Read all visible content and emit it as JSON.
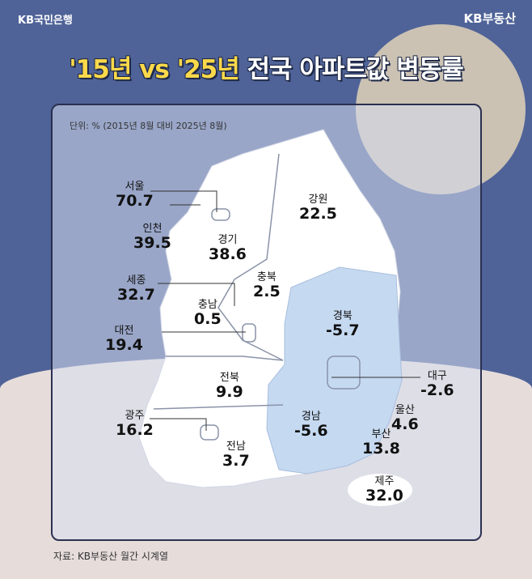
{
  "header": {
    "bank_logo": "KB국민은행",
    "brand": "KB부동산"
  },
  "title": {
    "highlight": "'15년 vs '25년",
    "main": "전국 아파트값 변동률"
  },
  "unit": "단위: % (2015년 8월 대비 2025년 8월)",
  "source": "자료: KB부동산 월간 시계열",
  "colors": {
    "background": "#4f6398",
    "decline_region": "#c5d9f1",
    "map": "#ffffff",
    "title_highlight": "#fcd94a"
  },
  "regions": [
    {
      "name": "서울",
      "value": "70.7"
    },
    {
      "name": "인천",
      "value": "39.5"
    },
    {
      "name": "경기",
      "value": "38.6"
    },
    {
      "name": "강원",
      "value": "22.5"
    },
    {
      "name": "충북",
      "value": "2.5"
    },
    {
      "name": "세종",
      "value": "32.7"
    },
    {
      "name": "충남",
      "value": "0.5"
    },
    {
      "name": "대전",
      "value": "19.4"
    },
    {
      "name": "경북",
      "value": "-5.7"
    },
    {
      "name": "전북",
      "value": "9.9"
    },
    {
      "name": "대구",
      "value": "-2.6"
    },
    {
      "name": "광주",
      "value": "16.2"
    },
    {
      "name": "경남",
      "value": "-5.6"
    },
    {
      "name": "울산",
      "value": "4.6"
    },
    {
      "name": "부산",
      "value": "13.8"
    },
    {
      "name": "전남",
      "value": "3.7"
    },
    {
      "name": "제주",
      "value": "32.0"
    }
  ]
}
